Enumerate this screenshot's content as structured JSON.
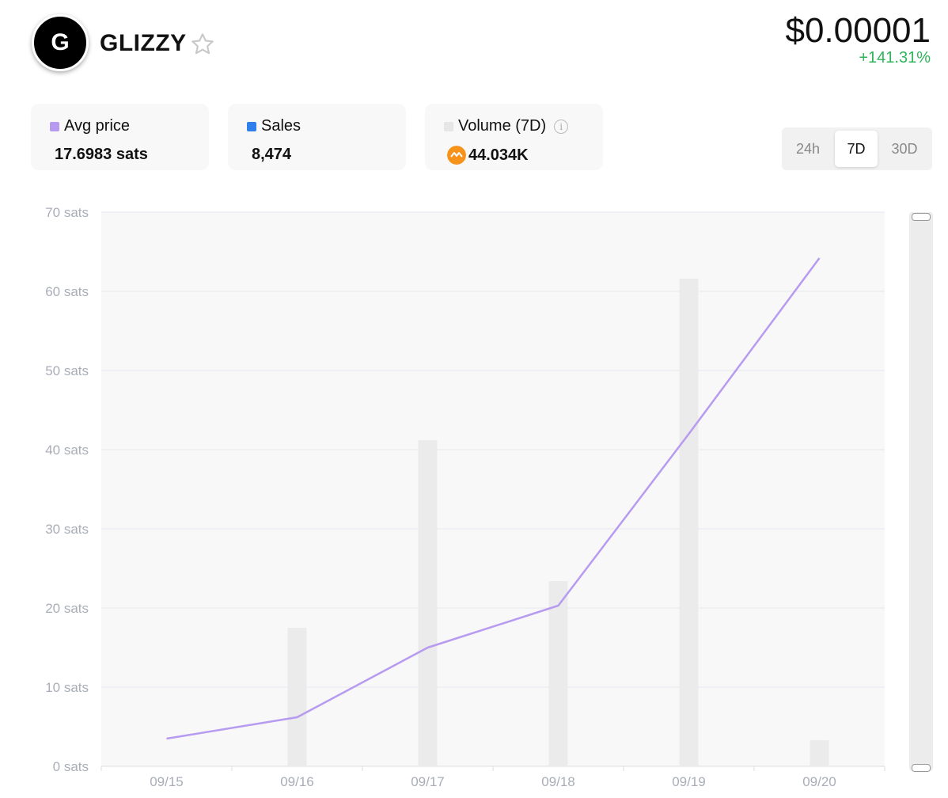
{
  "header": {
    "logo_letter": "G",
    "title": "GLIZZY",
    "price": "$0.00001",
    "change": "+141.31%"
  },
  "stats": {
    "avg_price": {
      "label": "Avg price",
      "value": "17.6983 sats",
      "color": "#b79bf0"
    },
    "sales": {
      "label": "Sales",
      "value": "8,474",
      "color": "#2f80ed"
    },
    "volume": {
      "label": "Volume (7D)",
      "value": "44.034K",
      "color": "#e6e6e6"
    }
  },
  "timeframes": {
    "options": [
      "24h",
      "7D",
      "30D"
    ],
    "active": "7D"
  },
  "chart_data": {
    "type": "line",
    "categories": [
      "09/15",
      "09/16",
      "09/17",
      "09/18",
      "09/19",
      "09/20"
    ],
    "y_ticks": [
      "0 sats",
      "10 sats",
      "20 sats",
      "30 sats",
      "40 sats",
      "50 sats",
      "60 sats",
      "70 sats"
    ],
    "ylim": [
      0,
      70
    ],
    "series": [
      {
        "type": "line",
        "values": [
          3.5,
          6.2,
          15.0,
          20.3,
          42.0,
          64.2
        ],
        "color": "#b79bf0"
      },
      {
        "type": "bar",
        "values": [
          0,
          17.5,
          41.2,
          23.4,
          61.6,
          3.3
        ],
        "color": "#ebebeb"
      }
    ],
    "grid": true
  }
}
